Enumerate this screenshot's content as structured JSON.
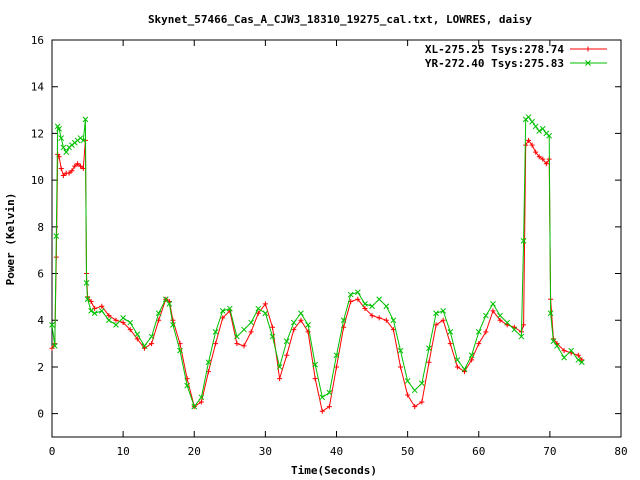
{
  "chart_data": {
    "type": "line",
    "title": "Skynet_57466_Cas_A_CJW3_18310_19275_cal.txt, LOWRES, daisy",
    "xlabel": "Time(Seconds)",
    "ylabel": "Power (Kelvin)",
    "xlim": [
      0,
      80
    ],
    "ylim": [
      -1,
      16
    ],
    "xticks": [
      0,
      10,
      20,
      30,
      40,
      50,
      60,
      70,
      80
    ],
    "yticks": [
      0,
      2,
      4,
      6,
      8,
      10,
      12,
      14,
      16
    ],
    "grid": false,
    "legend_position": "top-right",
    "series": [
      {
        "name": "XL-275.25 Tsys:278.74",
        "color": "#ff0000",
        "marker": "plus",
        "x": [
          0,
          0.4,
          0.6,
          0.8,
          1.0,
          1.3,
          1.6,
          2.0,
          2.4,
          2.8,
          3.2,
          3.6,
          4.0,
          4.4,
          4.7,
          4.85,
          5.0,
          5.5,
          6.0,
          7.0,
          8.0,
          9.0,
          10.0,
          11.0,
          12.0,
          13.0,
          14.0,
          15.0,
          16.0,
          16.5,
          17.0,
          18.0,
          19.0,
          20.0,
          21.0,
          22.0,
          23.0,
          24.0,
          25.0,
          26.0,
          27.0,
          28.0,
          29.0,
          30.0,
          31.0,
          32.0,
          33.0,
          34.0,
          35.0,
          36.0,
          37.0,
          38.0,
          39.0,
          40.0,
          41.0,
          42.0,
          43.0,
          44.0,
          45.0,
          46.0,
          47.0,
          48.0,
          49.0,
          50.0,
          51.0,
          52.0,
          53.0,
          54.0,
          55.0,
          56.0,
          57.0,
          58.0,
          59.0,
          60.0,
          61.0,
          62.0,
          63.0,
          64.0,
          65.0,
          66.0,
          66.3,
          66.6,
          67.0,
          67.5,
          68.0,
          68.5,
          69.0,
          69.5,
          69.9,
          70.1,
          70.5,
          71.0,
          72.0,
          73.0,
          74.0,
          74.5
        ],
        "y": [
          2.8,
          3.0,
          6.7,
          11.1,
          11.0,
          10.5,
          10.2,
          10.3,
          10.3,
          10.4,
          10.6,
          10.7,
          10.6,
          10.5,
          11.7,
          6.0,
          5.0,
          4.8,
          4.5,
          4.6,
          4.2,
          4.0,
          3.9,
          3.6,
          3.2,
          2.8,
          3.0,
          4.0,
          4.9,
          4.8,
          4.0,
          3.0,
          1.5,
          0.3,
          0.5,
          1.8,
          3.0,
          4.1,
          4.4,
          3.0,
          2.9,
          3.5,
          4.3,
          4.7,
          3.7,
          1.5,
          2.5,
          3.6,
          4.0,
          3.5,
          1.5,
          0.1,
          0.3,
          2.0,
          3.7,
          4.8,
          4.9,
          4.5,
          4.2,
          4.1,
          4.0,
          3.6,
          2.0,
          0.8,
          0.3,
          0.5,
          2.2,
          3.8,
          4.0,
          3.0,
          2.0,
          1.8,
          2.3,
          3.0,
          3.5,
          4.4,
          4.0,
          3.8,
          3.7,
          3.5,
          3.8,
          11.5,
          11.7,
          11.5,
          11.2,
          11.0,
          10.9,
          10.7,
          10.9,
          4.9,
          3.2,
          3.0,
          2.7,
          2.6,
          2.5,
          2.3
        ]
      },
      {
        "name": "YR-272.40 Tsys:275.83",
        "color": "#00c000",
        "marker": "cross",
        "x": [
          0,
          0.4,
          0.6,
          0.8,
          1.0,
          1.3,
          1.6,
          2.0,
          2.4,
          2.8,
          3.2,
          3.6,
          4.0,
          4.4,
          4.7,
          4.85,
          5.0,
          5.5,
          6.0,
          7.0,
          8.0,
          9.0,
          10.0,
          11.0,
          12.0,
          13.0,
          14.0,
          15.0,
          16.0,
          16.5,
          17.0,
          18.0,
          19.0,
          20.0,
          21.0,
          22.0,
          23.0,
          24.0,
          25.0,
          26.0,
          27.0,
          28.0,
          29.0,
          30.0,
          31.0,
          32.0,
          33.0,
          34.0,
          35.0,
          36.0,
          37.0,
          38.0,
          39.0,
          40.0,
          41.0,
          42.0,
          43.0,
          44.0,
          45.0,
          46.0,
          47.0,
          48.0,
          49.0,
          50.0,
          51.0,
          52.0,
          53.0,
          54.0,
          55.0,
          56.0,
          57.0,
          58.0,
          59.0,
          60.0,
          61.0,
          62.0,
          63.0,
          64.0,
          65.0,
          66.0,
          66.3,
          66.6,
          67.0,
          67.5,
          68.0,
          68.5,
          69.0,
          69.5,
          69.9,
          70.1,
          70.5,
          71.0,
          72.0,
          73.0,
          74.0,
          74.5
        ],
        "y": [
          3.8,
          2.9,
          7.6,
          12.3,
          12.2,
          11.8,
          11.4,
          11.2,
          11.4,
          11.5,
          11.6,
          11.7,
          11.8,
          11.7,
          12.6,
          5.6,
          4.9,
          4.4,
          4.3,
          4.4,
          4.0,
          3.8,
          4.1,
          3.9,
          3.4,
          2.9,
          3.3,
          4.3,
          4.9,
          4.7,
          3.8,
          2.7,
          1.2,
          0.3,
          0.7,
          2.2,
          3.5,
          4.4,
          4.5,
          3.3,
          3.6,
          3.9,
          4.5,
          4.3,
          3.3,
          2.0,
          3.1,
          3.9,
          4.3,
          3.8,
          2.1,
          0.7,
          0.9,
          2.5,
          4.0,
          5.1,
          5.2,
          4.7,
          4.6,
          4.9,
          4.6,
          4.0,
          2.7,
          1.4,
          1.0,
          1.3,
          2.8,
          4.3,
          4.4,
          3.5,
          2.3,
          1.9,
          2.5,
          3.5,
          4.2,
          4.7,
          4.2,
          3.9,
          3.6,
          3.3,
          7.4,
          12.6,
          12.7,
          12.5,
          12.3,
          12.1,
          12.2,
          12.0,
          11.9,
          4.3,
          3.1,
          2.9,
          2.4,
          2.7,
          2.3,
          2.2
        ]
      }
    ]
  }
}
